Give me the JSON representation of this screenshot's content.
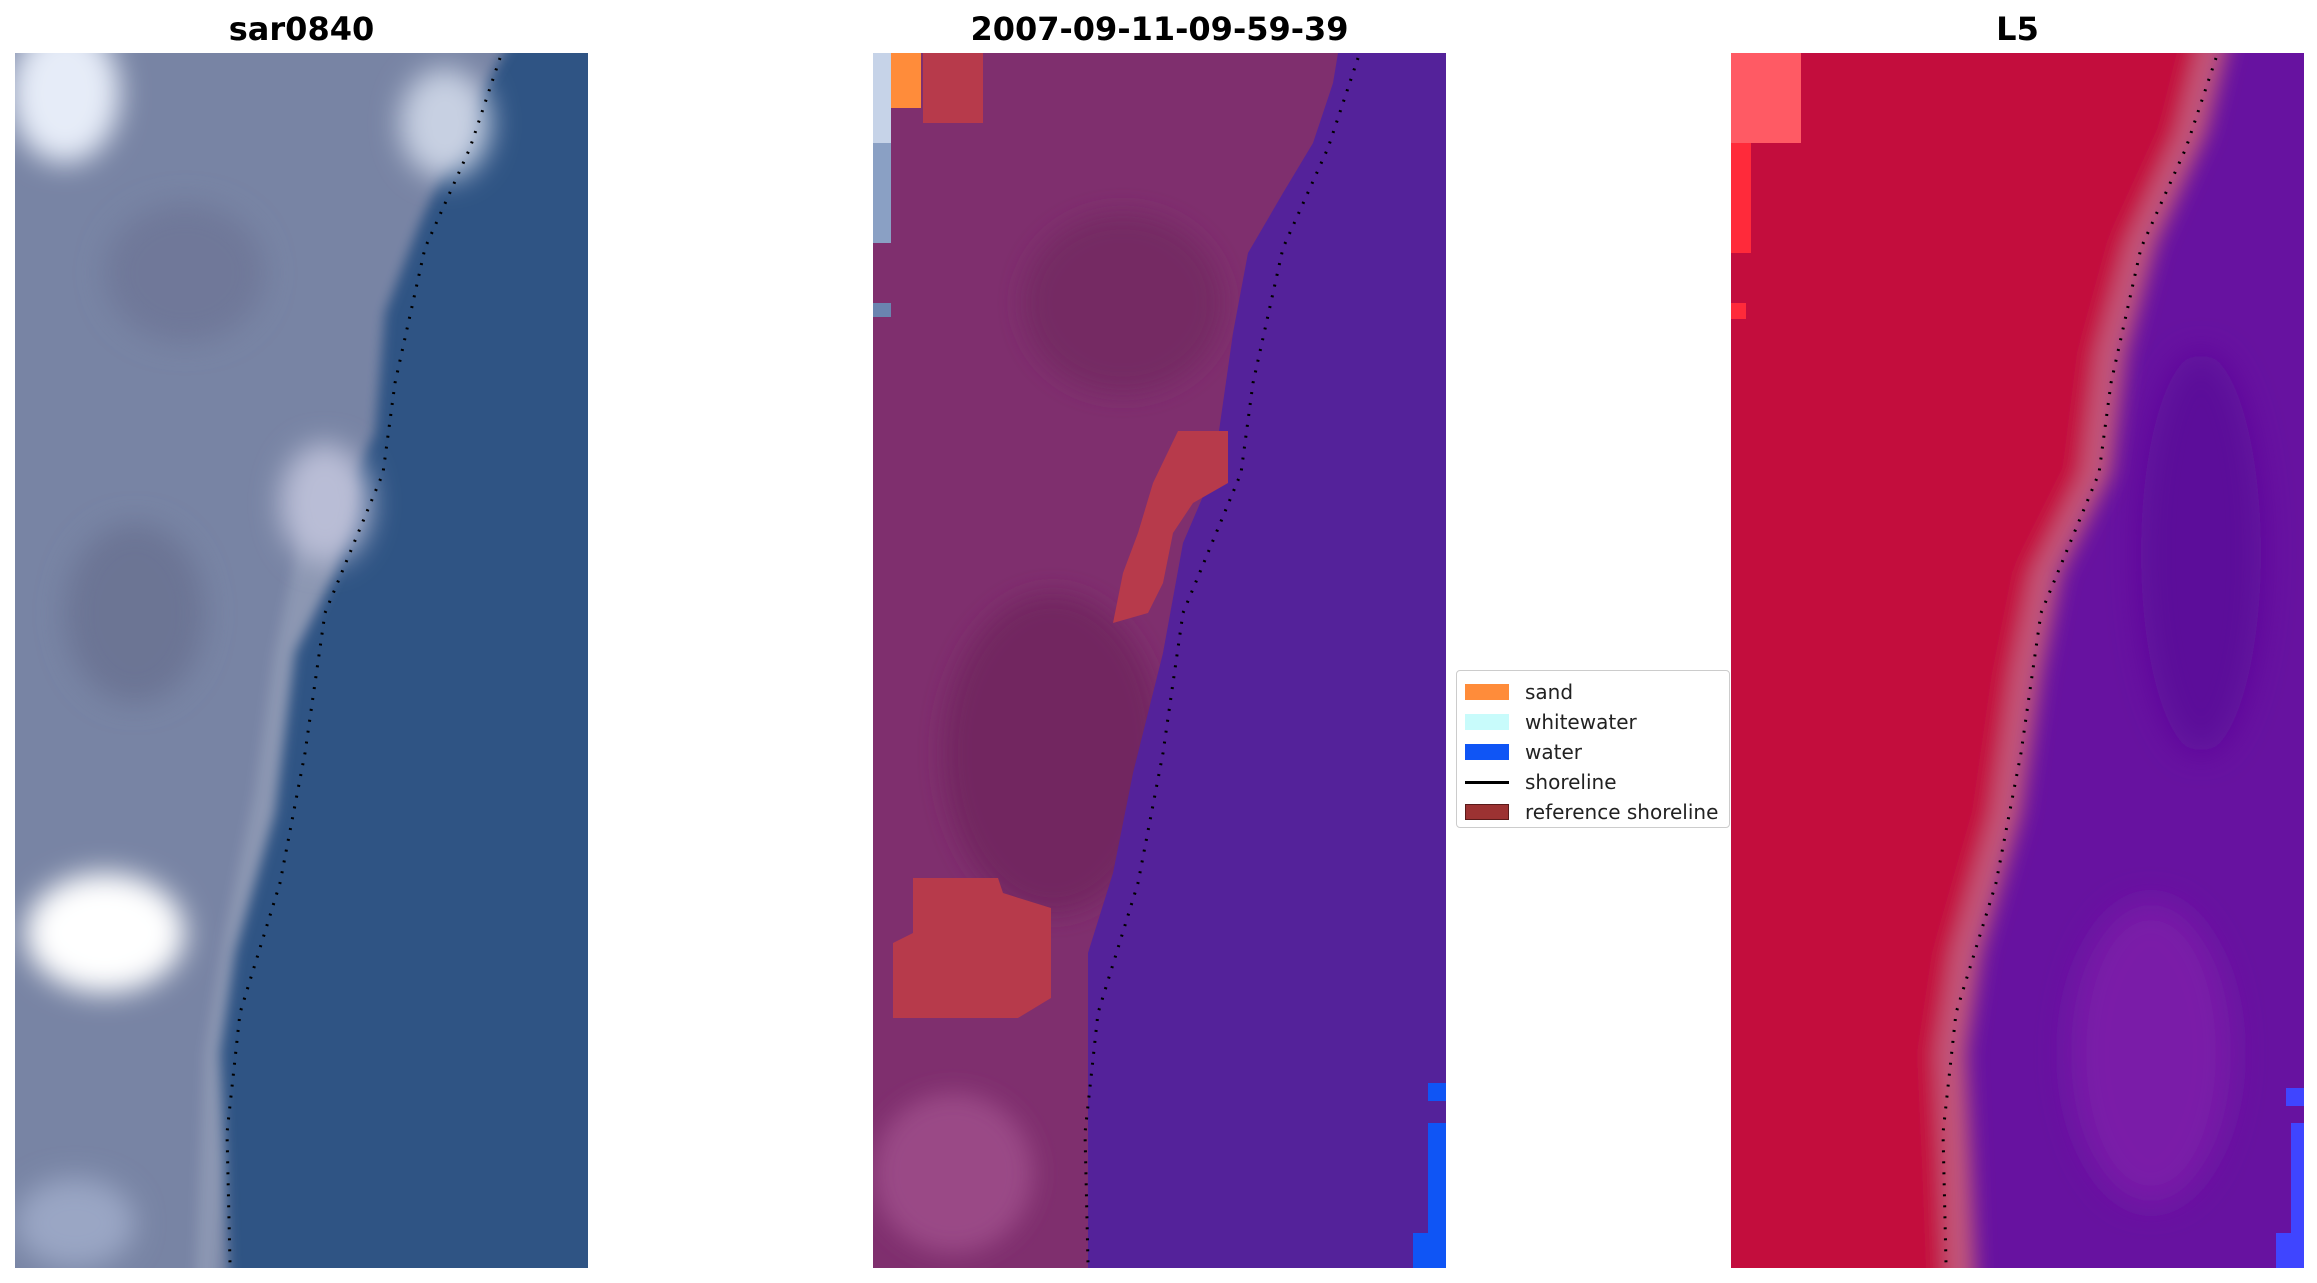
{
  "panels": [
    {
      "title": "sar0840"
    },
    {
      "title": "2007-09-11-09-59-39"
    },
    {
      "title": "L5"
    }
  ],
  "legend": {
    "items": [
      {
        "label": "sand",
        "color": "#ff8c3a",
        "kind": "patch"
      },
      {
        "label": "whitewater",
        "color": "#c8fbfb",
        "kind": "patch"
      },
      {
        "label": "water",
        "color": "#0f55f5",
        "kind": "patch"
      },
      {
        "label": "shoreline",
        "color": "#000000",
        "kind": "line"
      },
      {
        "label": "reference shoreline",
        "color": "#9c3232",
        "kind": "patch"
      }
    ]
  },
  "colors": {
    "rgb_land": "#7884a4",
    "rgb_water": "#2f5484",
    "classified_land": "#7f2f6e",
    "classified_water": "#54229a",
    "classified_sand_patch": "#b73a4b",
    "index_land": "#c3103e",
    "index_water": "#6712a0"
  }
}
